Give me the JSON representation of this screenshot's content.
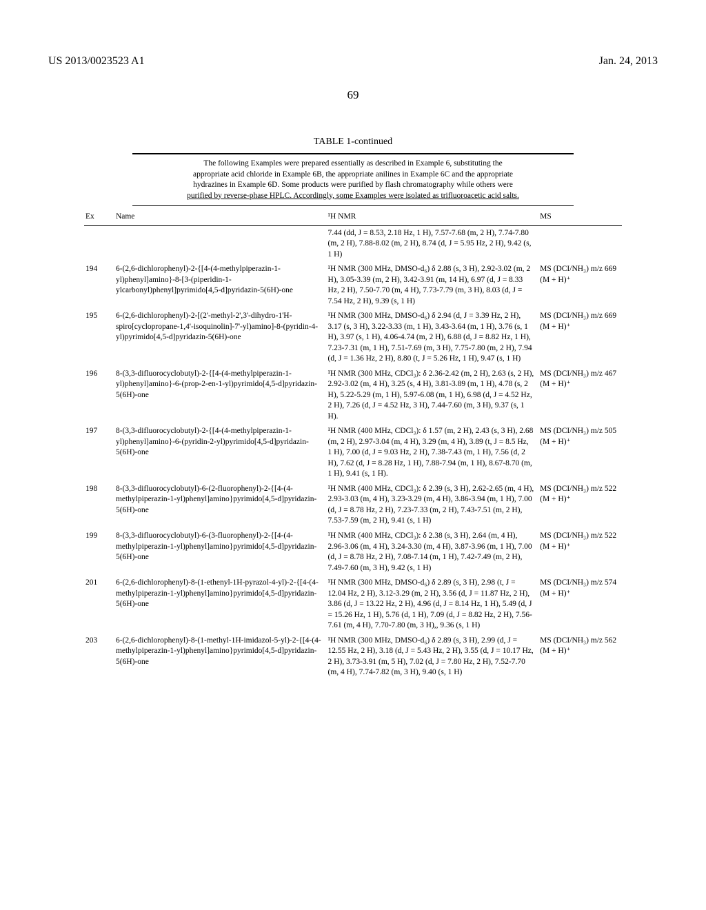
{
  "header": {
    "left": "US 2013/0023523 A1",
    "right": "Jan. 24, 2013"
  },
  "page_number": "69",
  "table": {
    "title": "TABLE 1-continued",
    "caption_lines": [
      "The following Examples were prepared essentially as described in Example 6, substituting the",
      "appropriate acid chloride in Example 6B, the appropriate anilines in Example 6C and the appropriate",
      "hydrazines in Example 6D. Some products were purified by flash chromatography while others were",
      "purified by reverse-phase HPLC. Accordingly, some Examples were isolated as trifluoroacetic acid salts."
    ],
    "columns": [
      "Ex",
      "Name",
      "¹H NMR",
      "MS"
    ],
    "prelude_nmr": "7.44 (dd, J = 8.53, 2.18 Hz, 1 H), 7.57-7.68 (m, 2 H), 7.74-7.80 (m, 2 H), 7.88-8.02 (m, 2 H), 8.74 (d, J = 5.95 Hz, 2 H), 9.42 (s, 1 H)",
    "rows": [
      {
        "ex": "194",
        "name": "6-(2,6-dichlorophenyl)-2-{[4-(4-methylpiperazin-1-yl)phenyl]amino}-8-[3-(piperidin-1-ylcarbonyl)phenyl]pyrimido[4,5-d]pyridazin-5(6H)-one",
        "nmr": "¹H NMR (300 MHz, DMSO-d₆) δ 2.88 (s, 3 H), 2.92-3.02 (m, 2 H), 3.05-3.39 (m, 2 H), 3.42-3.91 (m, 14 H), 6.97 (d, J = 8.33 Hz, 2 H), 7.50-7.70 (m, 4 H), 7.73-7.79 (m, 3 H), 8.03 (d, J = 7.54 Hz, 2 H), 9.39 (s, 1 H)",
        "ms": "MS (DCI/NH₃) m/z 669 (M + H)⁺"
      },
      {
        "ex": "195",
        "name": "6-(2,6-dichlorophenyl)-2-[(2'-methyl-2',3'-dihydro-1'H-spiro[cyclopropane-1,4'-isoquinolin]-7'-yl)amino]-8-(pyridin-4-yl)pyrimido[4,5-d]pyridazin-5(6H)-one",
        "nmr": "¹H NMR (300 MHz, DMSO-d₆) δ 2.94 (d, J = 3.39 Hz, 2 H), 3.17 (s, 3 H), 3.22-3.33 (m, 1 H), 3.43-3.64 (m, 1 H), 3.76 (s, 1 H), 3.97 (s, 1 H), 4.06-4.74 (m, 2 H), 6.88 (d, J = 8.82 Hz, 1 H), 7.23-7.31 (m, 1 H), 7.51-7.69 (m, 3 H), 7.75-7.80 (m, 2 H), 7.94 (d, J = 1.36 Hz, 2 H), 8.80 (t, J = 5.26 Hz, 1 H), 9.47 (s, 1 H)",
        "ms": "MS (DCI/NH₃) m/z 669 (M + H)⁺"
      },
      {
        "ex": "196",
        "name": "8-(3,3-difluorocyclobutyl)-2-{[4-(4-methylpiperazin-1-yl)phenyl]amino}-6-(prop-2-en-1-yl)pyrimido[4,5-d]pyridazin-5(6H)-one",
        "nmr": "¹H NMR (300 MHz, CDCl₃): δ 2.36-2.42 (m, 2 H), 2.63 (s, 2 H), 2.92-3.02 (m, 4 H), 3.25 (s, 4 H), 3.81-3.89 (m, 1 H), 4.78 (s, 2 H), 5.22-5.29 (m, 1 H), 5.97-6.08 (m, 1 H), 6.98 (d, J = 4.52 Hz, 2 H), 7.26 (d, J = 4.52 Hz, 3 H), 7.44-7.60 (m, 3 H), 9.37 (s, 1 H).",
        "ms": "MS (DCI/NH₃) m/z 467 (M + H)⁺"
      },
      {
        "ex": "197",
        "name": "8-(3,3-difluorocyclobutyl)-2-{[4-(4-methylpiperazin-1-yl)phenyl]amino}-6-(pyridin-2-yl)pyrimido[4,5-d]pyridazin-5(6H)-one",
        "nmr": "¹H NMR (400 MHz, CDCl₃): δ 1.57 (m, 2 H), 2.43 (s, 3 H), 2.68 (m, 2 H), 2.97-3.04 (m, 4 H), 3.29 (m, 4 H), 3.89 (t, J = 8.5 Hz, 1 H), 7.00 (d, J = 9.03 Hz, 2 H), 7.38-7.43 (m, 1 H), 7.56 (d, 2 H), 7.62 (d, J = 8.28 Hz, 1 H), 7.88-7.94 (m, 1 H), 8.67-8.70 (m, 1 H), 9.41 (s, 1 H).",
        "ms": "MS (DCI/NH₃) m/z 505 (M + H)⁺"
      },
      {
        "ex": "198",
        "name": "8-(3,3-difluorocyclobutyl)-6-(2-fluorophenyl)-2-{[4-(4-methylpiperazin-1-yl)phenyl]amino}pyrimido[4,5-d]pyridazin-5(6H)-one",
        "nmr": "¹H NMR (400 MHz, CDCl₃): δ 2.39 (s, 3 H), 2.62-2.65 (m, 4 H), 2.93-3.03 (m, 4 H), 3.23-3.29 (m, 4 H), 3.86-3.94 (m, 1 H), 7.00 (d, J = 8.78 Hz, 2 H), 7.23-7.33 (m, 2 H), 7.43-7.51 (m, 2 H), 7.53-7.59 (m, 2 H), 9.41 (s, 1 H)",
        "ms": "MS (DCI/NH₃) m/z 522 (M + H)⁺"
      },
      {
        "ex": "199",
        "name": "8-(3,3-difluorocyclobutyl)-6-(3-fluorophenyl)-2-{[4-(4-methylpiperazin-1-yl)phenyl]amino}pyrimido[4,5-d]pyridazin-5(6H)-one",
        "nmr": "¹H NMR (400 MHz, CDCl₃): δ 2.38 (s, 3 H), 2.64 (m, 4 H), 2.96-3.06 (m, 4 H), 3.24-3.30 (m, 4 H), 3.87-3.96 (m, 1 H), 7.00 (d, J = 8.78 Hz, 2 H), 7.08-7.14 (m, 1 H), 7.42-7.49 (m, 2 H), 7.49-7.60 (m, 3 H), 9.42 (s, 1 H)",
        "ms": "MS (DCI/NH₃) m/z 522 (M + H)⁺"
      },
      {
        "ex": "201",
        "name": "6-(2,6-dichlorophenyl)-8-(1-ethenyl-1H-pyrazol-4-yl)-2-{[4-(4-methylpiperazin-1-yl)phenyl]amino}pyrimido[4,5-d]pyridazin-5(6H)-one",
        "nmr": "¹H NMR (300 MHz, DMSO-d₆) δ 2.89 (s, 3 H), 2.98 (t, J = 12.04 Hz, 2 H), 3.12-3.29 (m, 2 H), 3.56 (d, J = 11.87 Hz, 2 H), 3.86 (d, J = 13.22 Hz, 2 H), 4.96 (d, J = 8.14 Hz, 1 H), 5.49 (d, J = 15.26 Hz, 1 H), 5.76 (d, 1 H), 7.09 (d, J = 8.82 Hz, 2 H), 7.56-7.61 (m, 4 H), 7.70-7.80 (m, 3 H),, 9.36 (s, 1 H)",
        "ms": "MS (DCI/NH₃) m/z 574 (M + H)⁺"
      },
      {
        "ex": "203",
        "name": "6-(2,6-dichlorophenyl)-8-(1-methyl-1H-imidazol-5-yl)-2-{[4-(4-methylpiperazin-1-yl)phenyl]amino}pyrimido[4,5-d]pyridazin-5(6H)-one",
        "nmr": "¹H NMR (300 MHz, DMSO-d₆) δ 2.89 (s, 3 H), 2.99 (d, J = 12.55 Hz, 2 H), 3.18 (d, J = 5.43 Hz, 2 H), 3.55 (d, J = 10.17 Hz, 2 H), 3.73-3.91 (m, 5 H), 7.02 (d, J = 7.80 Hz, 2 H), 7.52-7.70 (m, 4 H), 7.74-7.82 (m, 3 H), 9.40 (s, 1 H)",
        "ms": "MS (DCI/NH₃) m/z 562 (M + H)⁺"
      }
    ]
  }
}
